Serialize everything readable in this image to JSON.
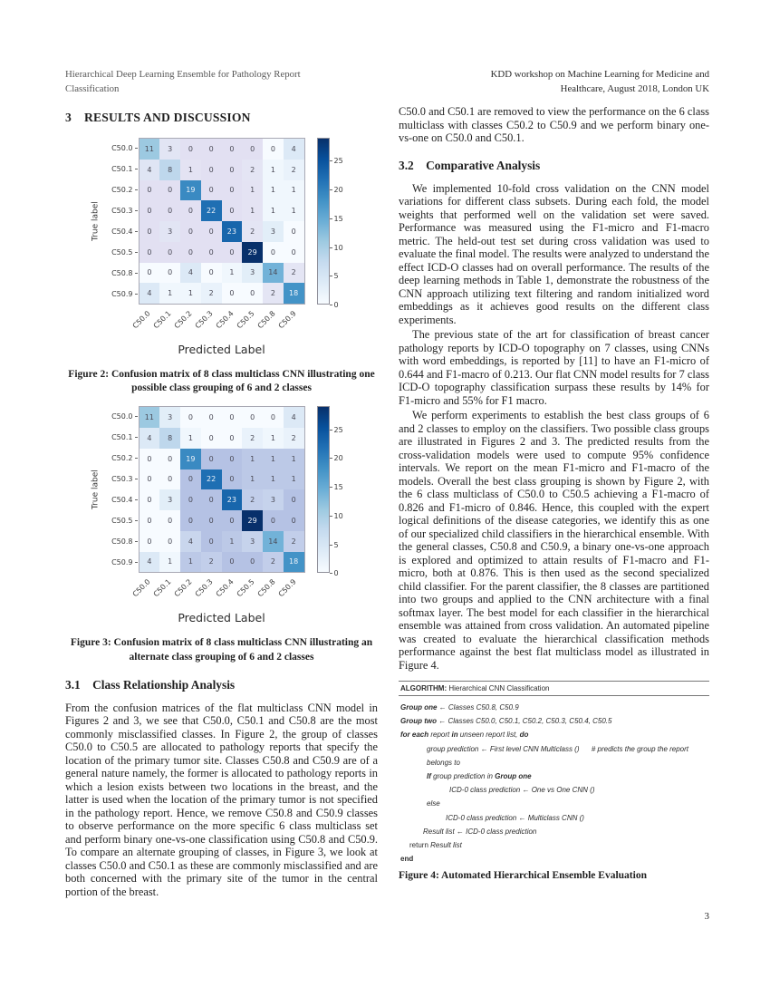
{
  "header": {
    "left": {
      "line1": "Hierarchical Deep Learning Ensemble for Pathology Report",
      "line2": "Classification"
    },
    "right": {
      "line1": "KDD workshop on Machine Learning for Medicine and",
      "line2": "Healthcare, August 2018, London UK"
    }
  },
  "left_column": {
    "section_heading": "3  RESULTS AND DISCUSSION",
    "subsection_heading": "3.1  Class Relationship Analysis",
    "paragraph": "From the confusion matrices of the flat multiclass CNN model in Figures 2 and 3, we see that C50.0, C50.1 and C50.8 are the most commonly misclassified classes. In Figure 2, the group of classes C50.0 to C50.5 are allocated to pathology reports that specify the location of the primary tumor site. Classes C50.8 and C50.9 are of a general nature namely, the former is allocated to pathology reports in which a lesion exists between two locations in the breast, and the latter is used when the location of the primary tumor is not specified in the pathology report. Hence, we remove C50.8 and C50.9 classes to observe performance on the more specific 6 class multiclass set and perform binary one-vs-one classification using C50.8 and C50.9. To compare an alternate grouping of classes, in Figure 3, we look at classes C50.0 and C50.1 as these are commonly misclassified and are both concerned with the primary site of the tumor in the central portion of the breast."
  },
  "right_column": {
    "intro_paragraph": "C50.0 and C50.1 are removed to view the performance on the 6 class multiclass with classes C50.2 to C50.9 and we perform binary one-vs-one on C50.0 and C50.1.",
    "subsection_heading": "3.2  Comparative Analysis",
    "p1": "We implemented 10-fold cross validation on the CNN model variations for different class subsets. During each fold, the model weights that performed well on the validation set were saved. Performance was measured using the F1-micro and F1-macro metric. The held-out test set during cross validation was used to evaluate the final model. The results were analyzed to understand the effect ICD-O classes had on overall performance. The results of the deep learning methods in Table 1, demonstrate the robustness of the CNN approach utilizing text filtering and random initialized word embeddings as it achieves good results on the different class experiments.",
    "p2": "The previous state of the art for classification of breast cancer pathology reports by ICD-O topography on 7 classes, using CNNs with word embeddings, is reported by [11] to have an F1-micro of 0.644 and F1-macro of 0.213. Our flat CNN model results for 7 class ICD-O topography classification surpass these results by 14% for F1-micro and 55% for F1 macro.",
    "p3": "We perform experiments to establish the best class groups of 6 and 2 classes to employ on the classifiers. Two possible class groups are illustrated in Figures 2 and 3. The predicted results from the cross-validation models were used to compute 95% confidence intervals. We report on the mean F1-micro and F1-macro of the models. Overall the best class grouping is shown by Figure 2, with the 6 class multiclass of C50.0 to C50.5 achieving a F1-macro of 0.826 and F1-micro of 0.846. Hence, this coupled with the expert logical definitions of the disease categories, we identify this as one of our specialized child classifiers in the hierarchical ensemble. With the general classes, C50.8 and C50.9, a binary one-vs-one approach is explored and optimized to attain results of F1-macro and F1-micro, both at 0.876. This is then used as the second specialized child classifier. For the parent classifier, the 8 classes are partitioned into two groups and applied to the CNN architecture with a final softmax layer. The best model for each classifier in the hierarchical ensemble was attained from cross validation. An automated pipeline was created to evaluate the hierarchical classification methods performance against the best flat multiclass model as illustrated in Figure 4.",
    "algorithm": {
      "label": "ALGORITHM:",
      "title": " Hierarchical CNN Classification",
      "lines": [
        {
          "indent": 0,
          "seg": [
            {
              "t": "Group one",
              "b": 1
            },
            {
              "t": " ← "
            },
            {
              "t": "Classes C50.8, C50.9"
            }
          ]
        },
        {
          "indent": 0,
          "seg": [
            {
              "t": "Group two",
              "b": 1
            },
            {
              "t": " ← "
            },
            {
              "t": "Classes C50.0, C50.1, C50.2, C50.3, C50.4, C50.5"
            }
          ]
        },
        {
          "indent": 0,
          "seg": [
            {
              "t": "for each",
              "b": 1
            },
            {
              "t": " report "
            },
            {
              "t": "in",
              "b": 1
            },
            {
              "t": " unseen report list, "
            },
            {
              "t": "do",
              "b": 1
            }
          ]
        },
        {
          "indent": 29,
          "seg": [
            {
              "t": "group prediction ← First level CNN Multiclass ()"
            },
            {
              "t": "      # predicts the group the report belongs to"
            }
          ]
        },
        {
          "indent": 29,
          "seg": [
            {
              "t": "If",
              "b": 1
            },
            {
              "t": " group prediction in "
            },
            {
              "t": "Group one",
              "b": 1
            }
          ]
        },
        {
          "indent": 54,
          "seg": [
            {
              "t": "ICD-0 class prediction ← One vs One CNN ()"
            }
          ]
        },
        {
          "indent": 29,
          "seg": [
            {
              "t": "else"
            }
          ]
        },
        {
          "indent": 50,
          "seg": [
            {
              "t": "ICD-0 class prediction ← Multiclass CNN ()"
            }
          ]
        },
        {
          "indent": 25,
          "seg": [
            {
              "t": "Result list ← ICD-0 class prediction"
            }
          ]
        },
        {
          "indent": 10,
          "seg": [
            {
              "t": "return",
              "u": 1
            },
            {
              "t": " Result list"
            }
          ]
        },
        {
          "indent": 0,
          "seg": [
            {
              "t": "end",
              "b": 1,
              "u": 1
            }
          ]
        }
      ]
    },
    "figure4_caption": "Figure 4: Automated Hierarchical Ensemble Evaluation"
  },
  "page_number": "3",
  "chart_data": [
    {
      "type": "heatmap",
      "title": "",
      "xlabel": "Predicted Label",
      "ylabel": "True label",
      "categories": [
        "C50.0",
        "C50.1",
        "C50.2",
        "C50.3",
        "C50.4",
        "C50.5",
        "C50.8",
        "C50.9"
      ],
      "matrix": [
        [
          11,
          3,
          0,
          0,
          0,
          0,
          0,
          4
        ],
        [
          4,
          8,
          1,
          0,
          0,
          2,
          1,
          2
        ],
        [
          0,
          0,
          19,
          0,
          0,
          1,
          1,
          1
        ],
        [
          0,
          0,
          0,
          22,
          0,
          1,
          1,
          1
        ],
        [
          0,
          3,
          0,
          0,
          23,
          2,
          3,
          0
        ],
        [
          0,
          0,
          0,
          0,
          0,
          29,
          0,
          0
        ],
        [
          0,
          0,
          4,
          0,
          1,
          3,
          14,
          2
        ],
        [
          4,
          1,
          1,
          2,
          0,
          0,
          2,
          18
        ]
      ],
      "colorbar": {
        "min": 0,
        "max": 29,
        "ticks": [
          0,
          5,
          10,
          15,
          20,
          25
        ],
        "colormap": "Blues"
      },
      "group_tint": "#e2e0f2",
      "tint_fade_value": 8,
      "group_blocks": [
        {
          "rows": [
            0,
            5
          ],
          "cols": [
            0,
            5
          ]
        },
        {
          "rows": [
            6,
            7
          ],
          "cols": [
            6,
            7
          ]
        }
      ],
      "caption": "Figure 2: Confusion matrix of 8 class multiclass CNN illustrating one possible class grouping of 6 and 2 classes"
    },
    {
      "type": "heatmap",
      "title": "",
      "xlabel": "Predicted Label",
      "ylabel": "True label",
      "categories": [
        "C50.0",
        "C50.1",
        "C50.2",
        "C50.3",
        "C50.4",
        "C50.5",
        "C50.8",
        "C50.9"
      ],
      "matrix": [
        [
          11,
          3,
          0,
          0,
          0,
          0,
          0,
          4
        ],
        [
          4,
          8,
          1,
          0,
          0,
          2,
          1,
          2
        ],
        [
          0,
          0,
          19,
          0,
          0,
          1,
          1,
          1
        ],
        [
          0,
          0,
          0,
          22,
          0,
          1,
          1,
          1
        ],
        [
          0,
          3,
          0,
          0,
          23,
          2,
          3,
          0
        ],
        [
          0,
          0,
          0,
          0,
          0,
          29,
          0,
          0
        ],
        [
          0,
          0,
          4,
          0,
          1,
          3,
          14,
          2
        ],
        [
          4,
          1,
          1,
          2,
          0,
          0,
          2,
          18
        ]
      ],
      "colorbar": {
        "min": 0,
        "max": 29,
        "ticks": [
          0,
          5,
          10,
          15,
          20,
          25
        ],
        "colormap": "Blues"
      },
      "group_tint": "#b5c2e4",
      "tint_fade_value": 8,
      "group_blocks": [
        {
          "rows": [
            2,
            7
          ],
          "cols": [
            2,
            7
          ]
        }
      ],
      "caption": "Figure 3: Confusion matrix of 8 class multiclass CNN illustrating an alternate class grouping of 6 and 2 classes"
    }
  ]
}
